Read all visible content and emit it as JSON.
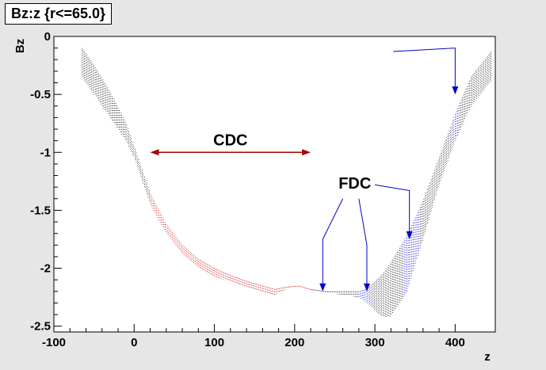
{
  "chart_data": {
    "type": "scatter",
    "title": "Bz:z {r<=65.0}",
    "xlabel": "z",
    "ylabel": "Bz",
    "xlim": [
      -100,
      450
    ],
    "ylim": [
      -2.55,
      0
    ],
    "xticks": [
      -100,
      0,
      100,
      200,
      300,
      400
    ],
    "yticks": [
      0,
      -0.5,
      -1,
      -1.5,
      -2,
      -2.5
    ],
    "ytick_labels": [
      "0",
      "-0.5",
      "-1",
      "-1.5",
      "-2",
      "-2.5"
    ],
    "grid": false,
    "series": [
      {
        "color": "#000000",
        "points_upper": [
          [
            -65,
            -0.1
          ],
          [
            -50,
            -0.25
          ],
          [
            -30,
            -0.48
          ],
          [
            -10,
            -0.75
          ],
          [
            0,
            -0.95
          ],
          [
            10,
            -1.15
          ],
          [
            20,
            -1.35
          ],
          [
            40,
            -1.62
          ],
          [
            60,
            -1.8
          ],
          [
            80,
            -1.92
          ],
          [
            100,
            -2.0
          ],
          [
            120,
            -2.06
          ],
          [
            140,
            -2.11
          ],
          [
            160,
            -2.15
          ],
          [
            175,
            -2.18
          ],
          [
            190,
            -2.16
          ],
          [
            205,
            -2.15
          ],
          [
            220,
            -2.18
          ],
          [
            240,
            -2.2
          ],
          [
            260,
            -2.2
          ],
          [
            280,
            -2.2
          ],
          [
            290,
            -2.18
          ],
          [
            300,
            -2.12
          ],
          [
            310,
            -2.05
          ],
          [
            320,
            -1.95
          ],
          [
            340,
            -1.72
          ],
          [
            360,
            -1.42
          ],
          [
            380,
            -1.05
          ],
          [
            400,
            -0.67
          ],
          [
            420,
            -0.35
          ],
          [
            445,
            -0.13
          ]
        ],
        "points_lower": [
          [
            -65,
            -0.35
          ],
          [
            -50,
            -0.5
          ],
          [
            -30,
            -0.7
          ],
          [
            -10,
            -0.9
          ],
          [
            0,
            -1.05
          ],
          [
            10,
            -1.25
          ],
          [
            20,
            -1.45
          ],
          [
            40,
            -1.7
          ],
          [
            60,
            -1.88
          ],
          [
            80,
            -2.0
          ],
          [
            100,
            -2.07
          ],
          [
            120,
            -2.12
          ],
          [
            140,
            -2.17
          ],
          [
            160,
            -2.21
          ],
          [
            175,
            -2.23
          ],
          [
            190,
            -2.18
          ],
          [
            205,
            -2.17
          ],
          [
            220,
            -2.2
          ],
          [
            240,
            -2.21
          ],
          [
            260,
            -2.23
          ],
          [
            280,
            -2.25
          ],
          [
            290,
            -2.3
          ],
          [
            300,
            -2.37
          ],
          [
            310,
            -2.42
          ],
          [
            320,
            -2.42
          ],
          [
            340,
            -2.2
          ],
          [
            360,
            -1.75
          ],
          [
            380,
            -1.28
          ],
          [
            400,
            -0.9
          ],
          [
            420,
            -0.6
          ],
          [
            445,
            -0.38
          ]
        ]
      },
      {
        "color": "#cc0000",
        "x_range": [
          20,
          220
        ]
      },
      {
        "color": "#0000cc",
        "x_ranges": [
          [
            280,
            295
          ],
          [
            335,
            355
          ],
          [
            395,
            405
          ]
        ]
      }
    ],
    "annotations": [
      {
        "text": "CDC",
        "x": 120,
        "y": -0.9,
        "arrow_color": "#aa0000",
        "arrow_from_x": 20,
        "arrow_to_x": 220,
        "arrow_y": -1.0
      },
      {
        "text": "FDC",
        "x": 275,
        "y": -1.27,
        "arrow_color": "#0000cc",
        "arrows": [
          {
            "from": [
              323,
              -0.13
            ],
            "to": [
              400,
              -0.1
            ],
            "tip": [
              400,
              -0.5
            ]
          },
          {
            "from": [
              260,
              -1.4
            ],
            "to": [
              235,
              -1.75
            ],
            "tip": [
              235,
              -2.2
            ]
          },
          {
            "from": [
              280,
              -1.4
            ],
            "to": [
              290,
              -1.8
            ],
            "tip": [
              290,
              -2.2
            ]
          },
          {
            "from": [
              300,
              -1.28
            ],
            "to": [
              343,
              -1.33
            ],
            "tip": [
              343,
              -1.75
            ]
          }
        ]
      }
    ]
  }
}
